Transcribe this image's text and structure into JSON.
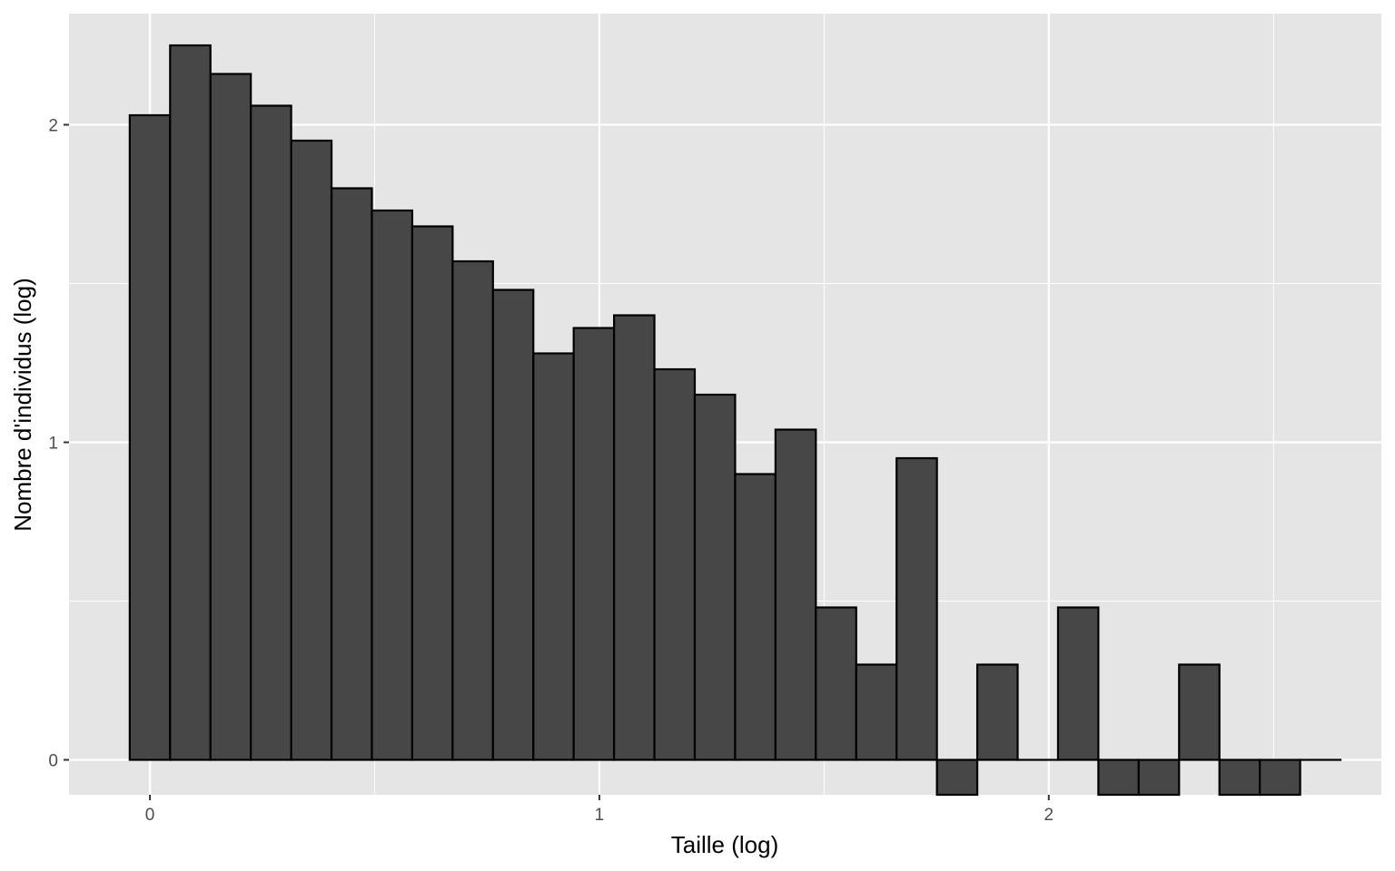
{
  "chart_data": {
    "type": "bar",
    "title": "",
    "xlabel": "Taille (log)",
    "ylabel": "Nombre d'individus (log)",
    "xlim": [
      -0.18,
      2.74
    ],
    "ylim": [
      -0.11,
      2.35
    ],
    "x_ticks": [
      0,
      1,
      2
    ],
    "y_ticks": [
      0,
      1,
      2
    ],
    "grid": true,
    "legend": "none",
    "bin_width": 0.0898,
    "bin_start": -0.0449,
    "bars": [
      {
        "x": 0.0,
        "y": 2.03
      },
      {
        "x": 0.09,
        "y": 2.25
      },
      {
        "x": 0.18,
        "y": 2.16
      },
      {
        "x": 0.269,
        "y": 2.06
      },
      {
        "x": 0.359,
        "y": 1.95
      },
      {
        "x": 0.449,
        "y": 1.8
      },
      {
        "x": 0.539,
        "y": 1.73
      },
      {
        "x": 0.629,
        "y": 1.68
      },
      {
        "x": 0.718,
        "y": 1.57
      },
      {
        "x": 0.808,
        "y": 1.48
      },
      {
        "x": 0.898,
        "y": 1.28
      },
      {
        "x": 0.988,
        "y": 1.36
      },
      {
        "x": 1.078,
        "y": 1.4
      },
      {
        "x": 1.167,
        "y": 1.23
      },
      {
        "x": 1.257,
        "y": 1.15
      },
      {
        "x": 1.347,
        "y": 0.9
      },
      {
        "x": 1.437,
        "y": 1.04
      },
      {
        "x": 1.527,
        "y": 0.48
      },
      {
        "x": 1.616,
        "y": 0.3
      },
      {
        "x": 1.706,
        "y": 0.95
      },
      {
        "x": 1.796,
        "y": -0.11
      },
      {
        "x": 1.886,
        "y": 0.3
      },
      {
        "x": 1.976,
        "y": 0.0
      },
      {
        "x": 2.065,
        "y": 0.48
      },
      {
        "x": 2.155,
        "y": -0.11
      },
      {
        "x": 2.245,
        "y": -0.11
      },
      {
        "x": 2.335,
        "y": 0.3
      },
      {
        "x": 2.424,
        "y": -0.11
      },
      {
        "x": 2.514,
        "y": -0.11
      },
      {
        "x": 2.604,
        "y": 0.0
      }
    ]
  },
  "colors": {
    "panel": "#e5e5e5",
    "grid": "#ffffff",
    "bar_fill": "#474747",
    "bar_stroke": "#000000",
    "tick_mark": "#333333"
  }
}
